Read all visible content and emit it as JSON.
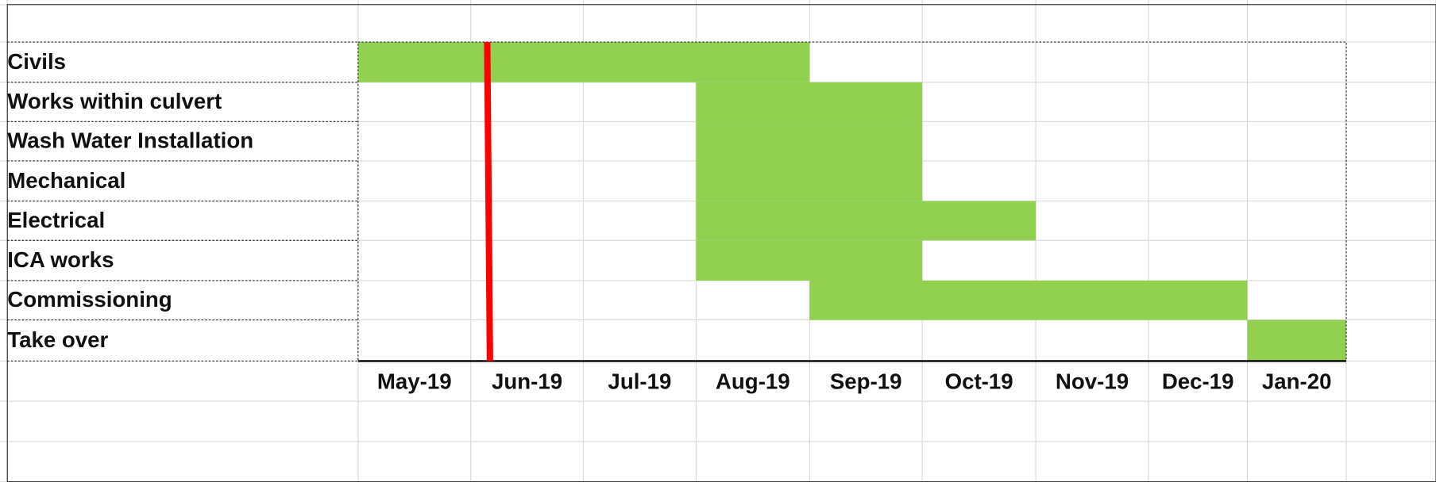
{
  "chart_data": {
    "type": "gantt",
    "months": [
      "May-19",
      "Jun-19",
      "Jul-19",
      "Aug-19",
      "Sep-19",
      "Oct-19",
      "Nov-19",
      "Dec-19",
      "Jan-20"
    ],
    "color": "#92d050",
    "tasks": [
      {
        "name": "Civils",
        "start": "May-19",
        "end": "Aug-19"
      },
      {
        "name": "Works within culvert",
        "start": "Aug-19",
        "end": "Sep-19"
      },
      {
        "name": "Wash Water Installation",
        "start": "Aug-19",
        "end": "Sep-19"
      },
      {
        "name": "Mechanical",
        "start": "Aug-19",
        "end": "Sep-19"
      },
      {
        "name": "Electrical",
        "start": "Aug-19",
        "end": "Oct-19"
      },
      {
        "name": "ICA works",
        "start": "Aug-19",
        "end": "Sep-19"
      },
      {
        "name": "Commissioning",
        "start": "Sep-19",
        "end": "Dec-19"
      },
      {
        "name": "Take over",
        "start": "Jan-20",
        "end": "Jan-20"
      }
    ]
  }
}
